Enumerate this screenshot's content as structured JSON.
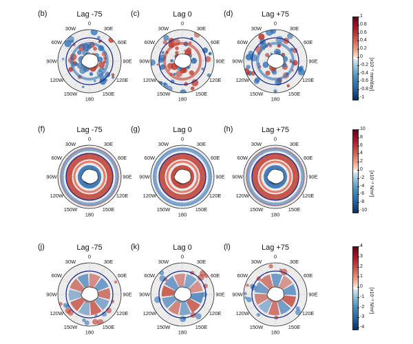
{
  "panels": [
    {
      "letter": "(b)",
      "lag": "Lag -75",
      "pattern": "precip",
      "variant": 0
    },
    {
      "letter": "(c)",
      "lag": "Lag 0",
      "pattern": "precip",
      "variant": 1
    },
    {
      "letter": "(d)",
      "lag": "Lag +75",
      "pattern": "precip",
      "variant": 2
    },
    {
      "letter": "(f)",
      "lag": "Lag -75",
      "pattern": "stressA",
      "variant": 0
    },
    {
      "letter": "(g)",
      "lag": "Lag 0",
      "pattern": "stressA",
      "variant": 1
    },
    {
      "letter": "(h)",
      "lag": "Lag +75",
      "pattern": "stressA",
      "variant": 2
    },
    {
      "letter": "(j)",
      "lag": "Lag -75",
      "pattern": "stressB",
      "variant": 0
    },
    {
      "letter": "(k)",
      "lag": "Lag 0",
      "pattern": "stressB",
      "variant": 1
    },
    {
      "letter": "(l)",
      "lag": "Lag +75",
      "pattern": "stressB",
      "variant": 2
    }
  ],
  "lon_labels": [
    "0",
    "30E",
    "60E",
    "90E",
    "120E",
    "150E",
    "180",
    "150W",
    "120W",
    "90W",
    "60W",
    "30W"
  ],
  "colorbars": [
    {
      "ticks": [
        "1",
        "0.8",
        "0.6",
        "0.4",
        "0.2",
        "0",
        "-0.2",
        "-0.4",
        "-0.6",
        "-0.8",
        "-1"
      ],
      "unit": "[x10⁻¹ mm/day]"
    },
    {
      "ticks": [
        "10",
        "8",
        "6",
        "4",
        "2",
        "0",
        "-2",
        "-4",
        "-6",
        "-8",
        "-10"
      ],
      "unit": "[x10⁻³ N/m²]"
    },
    {
      "ticks": [
        "4",
        "3",
        "2",
        "1",
        "0",
        "-1",
        "-2",
        "-3",
        "-4"
      ],
      "unit": "[x10⁻³ N/m²]"
    }
  ],
  "colors": {
    "red": "#c0392b",
    "deep_red": "#8b1a1a",
    "blue": "#2c6fb5",
    "deep_blue": "#12327a",
    "contour": "#1a2a8a",
    "coast": "#333333"
  }
}
